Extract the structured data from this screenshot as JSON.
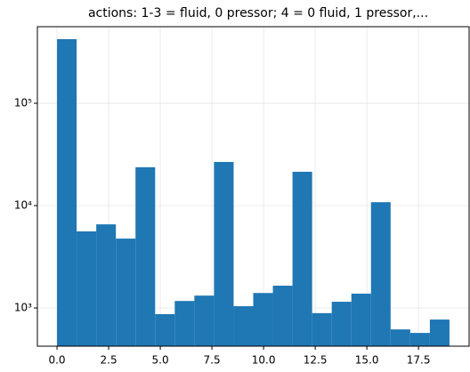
{
  "chart_data": {
    "type": "histogram",
    "log_y": true,
    "grid": true,
    "color": "#1f77b4",
    "title": "actions: 1-3 = fluid, 0 pressor; 4 = 0 fluid, 1 pressor,...",
    "bins": [
      0,
      0.95,
      1.9,
      2.85,
      3.8,
      4.75,
      5.7,
      6.65,
      7.6,
      8.55,
      9.5,
      10.45,
      11.4,
      12.35,
      13.3,
      14.25,
      15.2,
      16.15,
      17.1,
      18.05,
      19
    ],
    "values": [
      423000,
      5600,
      6560,
      4760,
      23700,
      870,
      1170,
      1320,
      26700,
      1040,
      1400,
      1650,
      21400,
      890,
      1150,
      1380,
      10800,
      617,
      570,
      770
    ],
    "xlim": [
      -0.95,
      19.95
    ],
    "xticks": [
      {
        "value": 0,
        "label": "0.0"
      },
      {
        "value": 2.5,
        "label": "2.5"
      },
      {
        "value": 5,
        "label": "5.0"
      },
      {
        "value": 7.5,
        "label": "7.5"
      },
      {
        "value": 10,
        "label": "10.0"
      },
      {
        "value": 12.5,
        "label": "12.5"
      },
      {
        "value": 15,
        "label": "15.0"
      },
      {
        "value": 17.5,
        "label": "17.5"
      }
    ],
    "ylim": [
      423,
      560000
    ],
    "yticks": [
      {
        "value": 1000,
        "label": "10³"
      },
      {
        "value": 10000,
        "label": "10⁴"
      },
      {
        "value": 100000,
        "label": "10⁵"
      }
    ]
  }
}
